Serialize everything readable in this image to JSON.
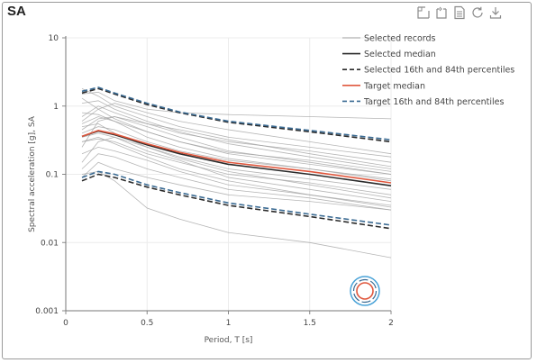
{
  "panel": {
    "title": "SA"
  },
  "toolbar": {
    "icons": [
      "zoom-select-icon",
      "zoom-reset-icon",
      "data-view-icon",
      "restore-icon",
      "download-icon"
    ]
  },
  "chart_data": {
    "type": "line",
    "title": "SA",
    "xlabel": "Period, T [s]",
    "ylabel": "Spectral acceleration [g], SA",
    "xlim": [
      0,
      2
    ],
    "ylim": [
      0.001,
      10
    ],
    "yscale": "log",
    "x_ticks": [
      0,
      0.5,
      1,
      1.5,
      2
    ],
    "x_tick_labels": [
      "0",
      "0.5",
      "1",
      "1.5",
      "2"
    ],
    "y_ticks": [
      0.001,
      0.01,
      0.1,
      1,
      10
    ],
    "y_tick_labels": [
      "0.001",
      "0.01",
      "0.1",
      "1",
      "10"
    ],
    "legend_position": "top-right",
    "x": [
      0.1,
      0.2,
      0.3,
      0.5,
      0.7,
      1.0,
      1.5,
      2.0
    ],
    "series": [
      {
        "name": "Selected records",
        "color": "#9e9e9e",
        "style": "solid",
        "values": [
          0.35,
          0.42,
          0.38,
          0.28,
          0.21,
          0.15,
          0.11,
          0.07
        ]
      },
      {
        "name": "Selected median",
        "color": "#2b2b2b",
        "style": "solid",
        "values": [
          0.36,
          0.43,
          0.38,
          0.27,
          0.2,
          0.14,
          0.1,
          0.068
        ]
      },
      {
        "name": "Selected 16th and 84th percentiles",
        "color": "#2b2b2b",
        "style": "dashed",
        "values": [
          1.55,
          1.8,
          1.5,
          1.05,
          0.8,
          0.58,
          0.42,
          0.3
        ],
        "lower": [
          0.08,
          0.1,
          0.09,
          0.065,
          0.05,
          0.035,
          0.024,
          0.016
        ]
      },
      {
        "name": "Target median",
        "color": "#e0573d",
        "style": "solid",
        "values": [
          0.36,
          0.44,
          0.39,
          0.28,
          0.21,
          0.15,
          0.11,
          0.075
        ]
      },
      {
        "name": "Target 16th and 84th percentiles",
        "color": "#3b6b93",
        "style": "dashed",
        "values": [
          1.65,
          1.88,
          1.55,
          1.1,
          0.82,
          0.6,
          0.44,
          0.32
        ],
        "lower": [
          0.09,
          0.11,
          0.1,
          0.07,
          0.054,
          0.038,
          0.026,
          0.018
        ]
      }
    ],
    "records": [
      [
        0.09,
        0.15,
        0.12,
        0.09,
        0.07,
        0.05,
        0.04,
        0.03
      ],
      [
        0.1,
        0.11,
        0.08,
        0.032,
        0.022,
        0.014,
        0.01,
        0.006
      ],
      [
        0.2,
        0.25,
        0.22,
        0.16,
        0.11,
        0.07,
        0.05,
        0.035
      ],
      [
        0.3,
        0.33,
        0.3,
        0.2,
        0.15,
        0.1,
        0.075,
        0.05
      ],
      [
        0.4,
        0.5,
        0.45,
        0.3,
        0.22,
        0.16,
        0.12,
        0.08
      ],
      [
        0.55,
        0.7,
        0.6,
        0.42,
        0.3,
        0.21,
        0.16,
        0.11
      ],
      [
        0.6,
        0.9,
        1.1,
        0.8,
        0.6,
        0.45,
        0.3,
        0.2
      ],
      [
        0.7,
        1.0,
        0.8,
        0.55,
        0.4,
        0.3,
        0.22,
        0.15
      ],
      [
        1.1,
        1.2,
        0.9,
        0.6,
        0.42,
        0.28,
        0.18,
        0.12
      ],
      [
        1.5,
        1.6,
        1.2,
        0.9,
        0.8,
        0.75,
        0.7,
        0.65
      ],
      [
        1.8,
        1.4,
        1.0,
        0.7,
        0.5,
        0.35,
        0.25,
        0.18
      ],
      [
        0.25,
        0.6,
        0.7,
        0.5,
        0.35,
        0.22,
        0.15,
        0.1
      ],
      [
        0.15,
        0.3,
        0.35,
        0.25,
        0.18,
        0.12,
        0.085,
        0.06
      ],
      [
        0.5,
        0.55,
        0.4,
        0.25,
        0.17,
        0.11,
        0.07,
        0.045
      ],
      [
        0.35,
        0.4,
        0.35,
        0.22,
        0.16,
        0.09,
        0.06,
        0.04
      ],
      [
        0.45,
        0.65,
        0.7,
        0.55,
        0.45,
        0.32,
        0.2,
        0.13
      ],
      [
        0.12,
        0.2,
        0.18,
        0.12,
        0.09,
        0.06,
        0.045,
        0.03
      ],
      [
        0.8,
        0.75,
        0.6,
        0.35,
        0.25,
        0.17,
        0.12,
        0.085
      ],
      [
        0.3,
        0.35,
        0.28,
        0.18,
        0.12,
        0.08,
        0.05,
        0.033
      ],
      [
        1.3,
        0.9,
        0.65,
        0.42,
        0.3,
        0.2,
        0.14,
        0.1
      ]
    ]
  }
}
